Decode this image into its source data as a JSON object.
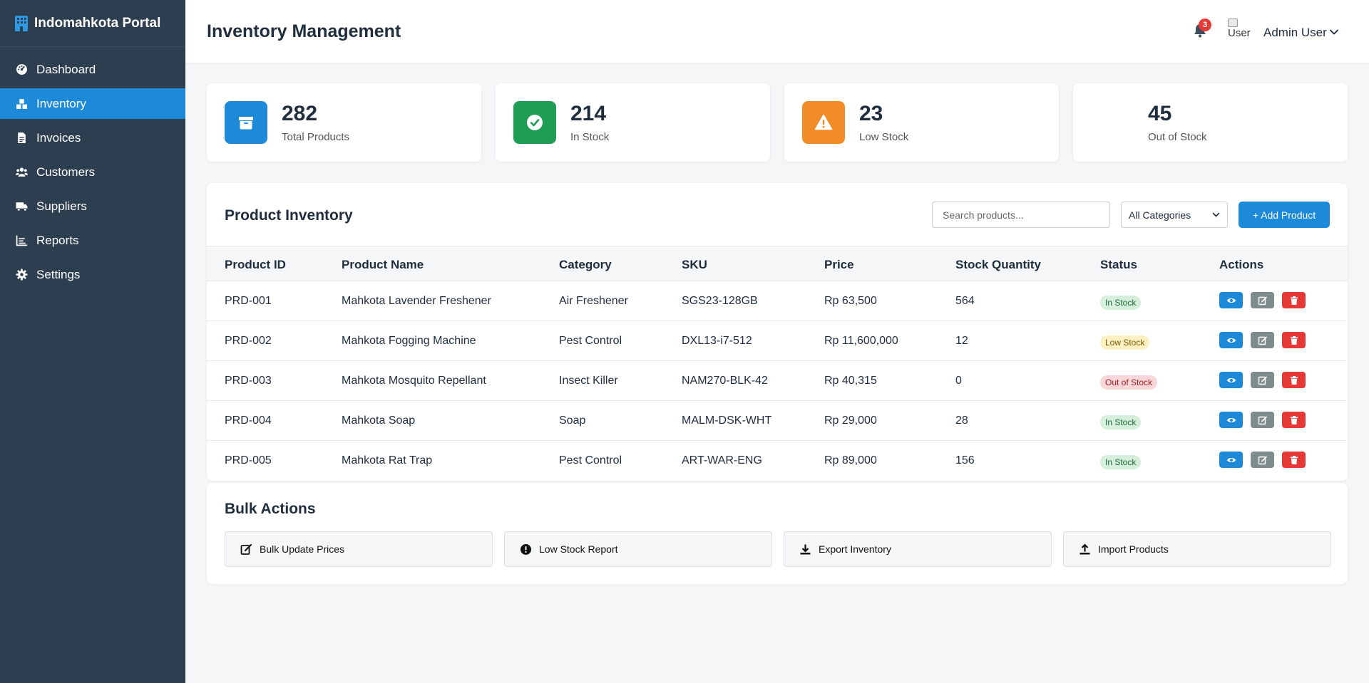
{
  "app": {
    "title": "Indomahkota Portal"
  },
  "sidebar": {
    "items": [
      {
        "label": "Dashboard",
        "icon": "dashboard-icon"
      },
      {
        "label": "Inventory",
        "icon": "boxes-icon",
        "active": true
      },
      {
        "label": "Invoices",
        "icon": "file-invoice-icon"
      },
      {
        "label": "Customers",
        "icon": "users-icon"
      },
      {
        "label": "Suppliers",
        "icon": "truck-icon"
      },
      {
        "label": "Reports",
        "icon": "chart-line-icon"
      },
      {
        "label": "Settings",
        "icon": "gear-icon"
      }
    ]
  },
  "header": {
    "title": "Inventory Management",
    "notification_count": "3",
    "avatar_alt": "User",
    "user_name": "Admin User"
  },
  "stats": [
    {
      "value": "282",
      "label": "Total Products",
      "icon": "box-icon",
      "color": "#1c8ad8"
    },
    {
      "value": "214",
      "label": "In Stock",
      "icon": "check-circle-icon",
      "color": "#1f9d55"
    },
    {
      "value": "23",
      "label": "Low Stock",
      "icon": "warning-icon",
      "color": "#f28c28"
    },
    {
      "value": "45",
      "label": "Out of Stock",
      "icon": "",
      "color": "#ffffff"
    }
  ],
  "inventory": {
    "title": "Product Inventory",
    "search_placeholder": "Search products...",
    "category_selected": "All Categories",
    "add_label": "+ Add Product",
    "columns": [
      "Product ID",
      "Product Name",
      "Category",
      "SKU",
      "Price",
      "Stock Quantity",
      "Status",
      "Actions"
    ],
    "rows": [
      {
        "id": "PRD-001",
        "name": "Mahkota Lavender Freshener",
        "category": "Air Freshener",
        "sku": "SGS23-128GB",
        "price": "Rp 63,500",
        "stock": "564",
        "status": "In Stock"
      },
      {
        "id": "PRD-002",
        "name": "Mahkota Fogging Machine",
        "category": "Pest Control",
        "sku": "DXL13-i7-512",
        "price": "Rp 11,600,000",
        "stock": "12",
        "status": "Low Stock"
      },
      {
        "id": "PRD-003",
        "name": "Mahkota Mosquito Repellant",
        "category": "Insect Killer",
        "sku": "NAM270-BLK-42",
        "price": "Rp 40,315",
        "stock": "0",
        "status": "Out of Stock"
      },
      {
        "id": "PRD-004",
        "name": "Mahkota Soap",
        "category": "Soap",
        "sku": "MALM-DSK-WHT",
        "price": "Rp 29,000",
        "stock": "28",
        "status": "In Stock"
      },
      {
        "id": "PRD-005",
        "name": "Mahkota Rat Trap",
        "category": "Pest Control",
        "sku": "ART-WAR-ENG",
        "price": "Rp 89,000",
        "stock": "156",
        "status": "In Stock"
      }
    ]
  },
  "bulk": {
    "title": "Bulk Actions",
    "actions": [
      {
        "label": "Bulk Update Prices",
        "icon": "edit-icon"
      },
      {
        "label": "Low Stock Report",
        "icon": "exclamation-circle-icon"
      },
      {
        "label": "Export Inventory",
        "icon": "download-icon"
      },
      {
        "label": "Import Products",
        "icon": "upload-icon"
      }
    ]
  },
  "colors": {
    "sidebar_bg": "#2c3e50",
    "accent": "#1c8ad8",
    "danger": "#e53935",
    "muted": "#7f8c8d"
  }
}
